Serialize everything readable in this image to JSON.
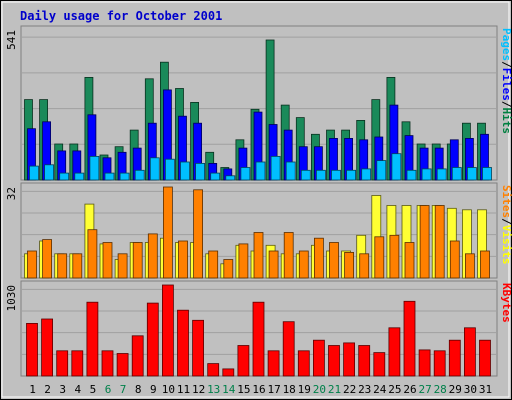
{
  "chart_data": {
    "type": "bar",
    "title": "Daily usage for October 2001",
    "categories": [
      "1",
      "2",
      "3",
      "4",
      "5",
      "6",
      "7",
      "8",
      "9",
      "10",
      "11",
      "12",
      "13",
      "14",
      "15",
      "16",
      "17",
      "18",
      "19",
      "20",
      "21",
      "22",
      "23",
      "24",
      "25",
      "26",
      "27",
      "28",
      "29",
      "30",
      "31"
    ],
    "weekend_days": [
      "6",
      "7",
      "13",
      "14",
      "20",
      "21",
      "27",
      "28"
    ],
    "panels": [
      {
        "key": "pages_files_hits",
        "ymax": 541,
        "ymax_label": "541",
        "axis_label_parts": [
          {
            "text": "Pages",
            "color": "#00bfff"
          },
          {
            "text": "/",
            "color": "#000000"
          },
          {
            "text": "Files",
            "color": "#0000ff"
          },
          {
            "text": "/",
            "color": "#000000"
          },
          {
            "text": "Hits",
            "color": "#008040"
          }
        ],
        "series": [
          {
            "name": "Hits",
            "color": "#1a8a5a",
            "values": [
              290,
              290,
              130,
              130,
              370,
              90,
              120,
              180,
              365,
              425,
              330,
              280,
              100,
              45,
              145,
              255,
              505,
              270,
              225,
              165,
              180,
              180,
              215,
              290,
              370,
              210,
              130,
              130,
              130,
              205,
              205
            ]
          },
          {
            "name": "Files",
            "color": "#0000ff",
            "values": [
              185,
              210,
              105,
              105,
              235,
              80,
              100,
              115,
              205,
              325,
              230,
              205,
              60,
              40,
              115,
              245,
              200,
              180,
              120,
              120,
              150,
              150,
              145,
              155,
              270,
              160,
              115,
              115,
              145,
              150,
              165
            ]
          },
          {
            "name": "Pages",
            "color": "#00bfff",
            "values": [
              50,
              55,
              25,
              25,
              85,
              25,
              25,
              35,
              80,
              75,
              65,
              60,
              25,
              15,
              45,
              65,
              85,
              65,
              35,
              35,
              35,
              35,
              40,
              70,
              95,
              35,
              40,
              40,
              45,
              45,
              45
            ]
          }
        ]
      },
      {
        "key": "sites_visits",
        "ymax": 32,
        "ymax_label": "32",
        "axis_label_parts": [
          {
            "text": "Sites",
            "color": "#ff8000"
          },
          {
            "text": "/",
            "color": "#000000"
          },
          {
            "text": "Visits",
            "color": "#ffff00"
          }
        ],
        "series": [
          {
            "name": "Visits",
            "color": "#ffff33",
            "values": [
              8.5,
              13,
              8.5,
              8.5,
              26,
              12,
              6.5,
              12.5,
              12.5,
              14,
              12.5,
              12.5,
              8.5,
              5,
              11.5,
              9.5,
              11.5,
              8.5,
              8.5,
              11.5,
              9.5,
              9.5,
              15,
              29,
              25.5,
              25.5,
              25.5,
              25.5,
              24.5,
              24,
              24
            ]
          },
          {
            "name": "Sites",
            "color": "#ff8000",
            "values": [
              9.5,
              13.5,
              8.5,
              8.5,
              17,
              12.5,
              8.5,
              12.5,
              15.5,
              32,
              13,
              31,
              9.5,
              6.5,
              12,
              16,
              9.5,
              16,
              9.5,
              14,
              12.5,
              9,
              8.5,
              14.5,
              15,
              12.5,
              25.5,
              25.5,
              13,
              8.5,
              9.5
            ]
          }
        ]
      },
      {
        "key": "kbytes",
        "ymax": 1030,
        "ymax_label": "1030",
        "axis_label_parts": [
          {
            "text": "KBytes",
            "color": "#ff0000"
          }
        ],
        "series": [
          {
            "name": "KBytes",
            "color": "#ff0000",
            "values": [
              595,
              645,
              285,
              285,
              835,
              285,
              255,
              455,
              825,
              1030,
              745,
              630,
              140,
              80,
              345,
              835,
              285,
              615,
              285,
              405,
              345,
              375,
              345,
              265,
              545,
              845,
              295,
              285,
              405,
              545,
              405
            ]
          }
        ]
      }
    ]
  }
}
